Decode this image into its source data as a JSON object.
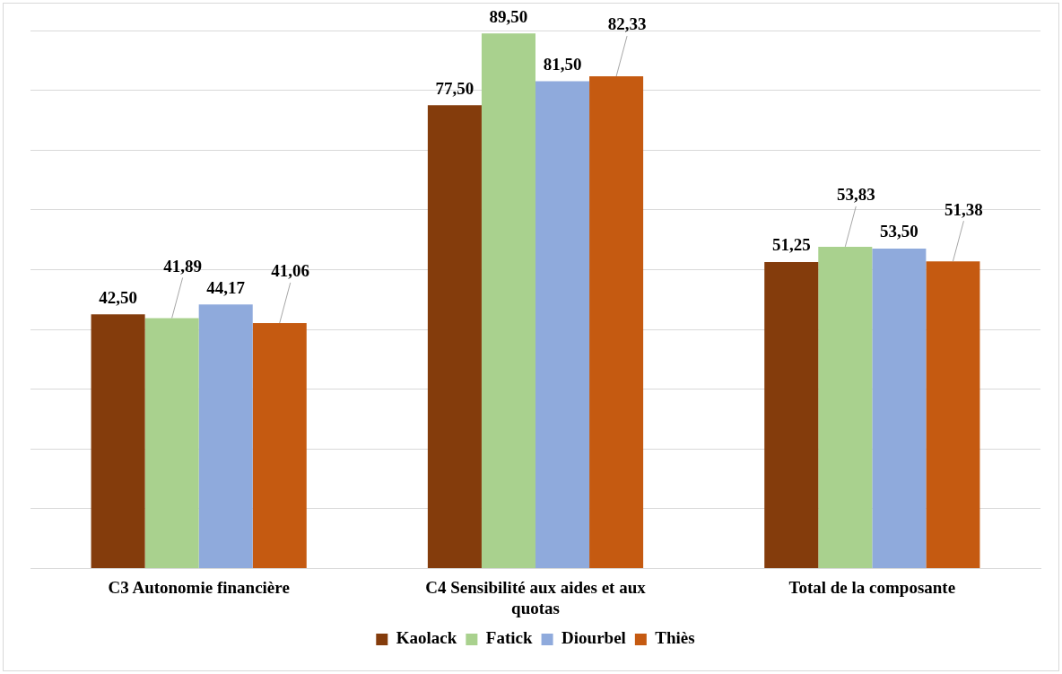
{
  "chart_data": {
    "type": "bar",
    "categories": [
      "C3 Autonomie financière",
      "C4 Sensibilité aux aides et aux quotas",
      "Total de la composante"
    ],
    "series": [
      {
        "name": "Kaolack",
        "color": "#843c0c",
        "values": [
          42.5,
          77.5,
          51.25
        ],
        "value_labels": [
          "42,50",
          "77,50",
          "51,25"
        ]
      },
      {
        "name": "Fatick",
        "color": "#a9d18e",
        "values": [
          41.89,
          89.5,
          53.83
        ],
        "value_labels": [
          "41,89",
          "89,50",
          "53,83"
        ]
      },
      {
        "name": "Diourbel",
        "color": "#8faadc",
        "values": [
          44.17,
          81.5,
          53.5
        ],
        "value_labels": [
          "44,17",
          "81,50",
          "53,50"
        ]
      },
      {
        "name": "Thiès",
        "color": "#c55a11",
        "values": [
          41.06,
          82.33,
          51.38
        ],
        "value_labels": [
          "41,06",
          "82,33",
          "51,38"
        ]
      }
    ],
    "grid": "y",
    "legend": "bottom",
    "tick_labels": "x"
  }
}
